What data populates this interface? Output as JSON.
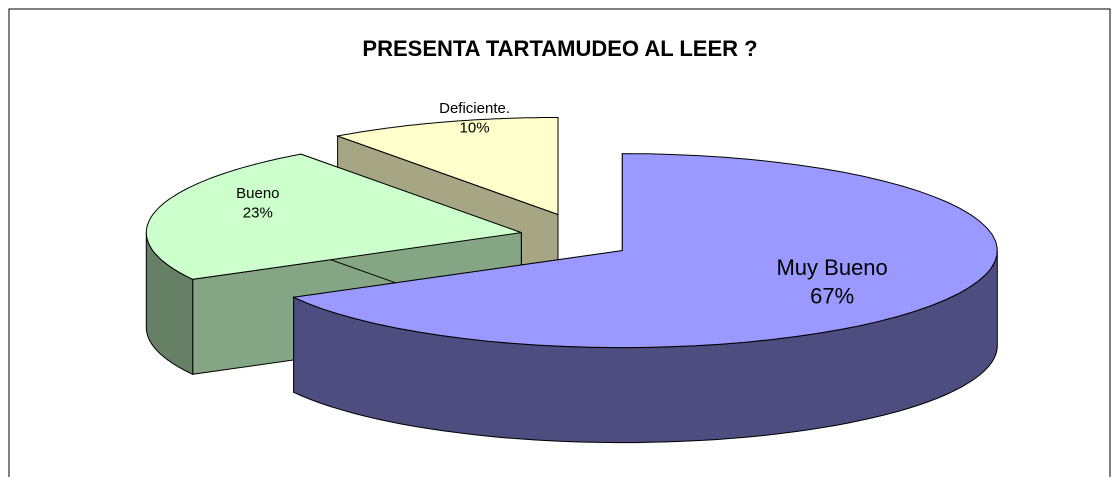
{
  "chart_data": {
    "type": "pie3d",
    "title": "PRESENTA TARTAMUDEO AL LEER ?",
    "categories": [
      "Muy Bueno",
      "Bueno",
      "Deficiente."
    ],
    "values": [
      67,
      23,
      10
    ],
    "value_labels": [
      "67%",
      "23%",
      "10%"
    ],
    "colors": [
      "#9999ff",
      "#ccffcc",
      "#ffffcc"
    ]
  }
}
